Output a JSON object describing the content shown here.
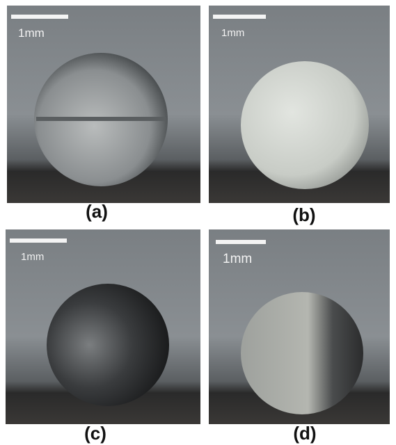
{
  "panels": [
    {
      "label": "(a)",
      "scale_bar": "1mm"
    },
    {
      "label": "(b)",
      "scale_bar": "1mm"
    },
    {
      "label": "(c)",
      "scale_bar": "1mm"
    },
    {
      "label": "(d)",
      "scale_bar": "1mm"
    }
  ]
}
